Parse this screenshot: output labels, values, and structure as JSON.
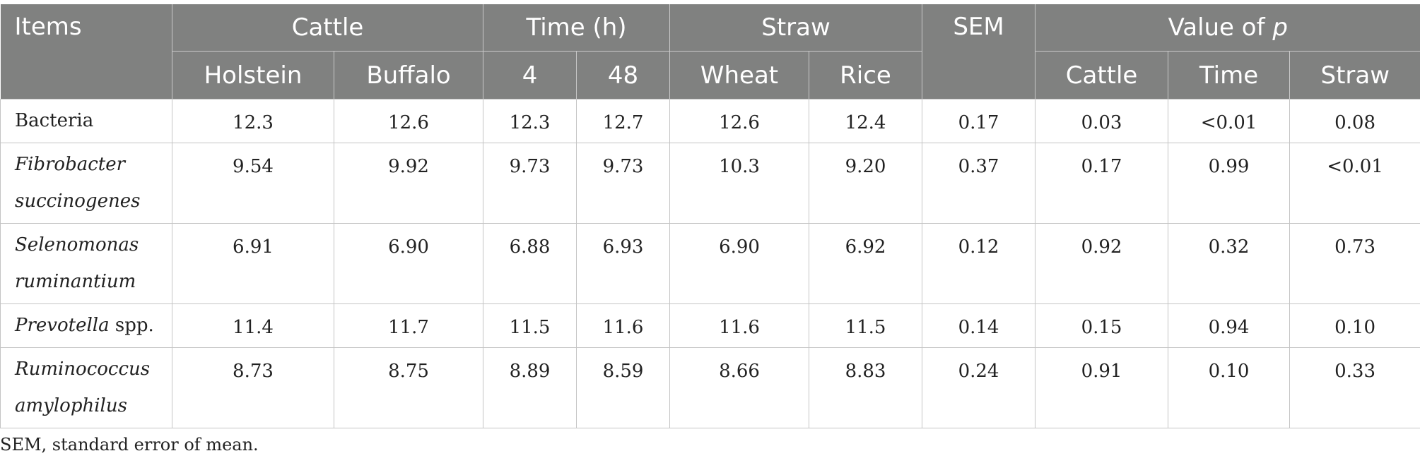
{
  "table": {
    "headers": {
      "items": "Items",
      "cattle": "Cattle",
      "time": "Time (h)",
      "straw": "Straw",
      "sem": "SEM",
      "value_of_p_prefix": "Value of ",
      "value_of_p_var": "p",
      "holstein": "Holstein",
      "buffalo": "Buffalo",
      "time_4": "4",
      "time_48": "48",
      "wheat": "Wheat",
      "rice": "Rice",
      "p_cattle": "Cattle",
      "p_time": "Time",
      "p_straw": "Straw"
    },
    "rows": [
      {
        "item_italic_1": "",
        "item_normal_1": "Bacteria",
        "item_italic_2": "",
        "item_normal_2": "",
        "values": [
          "12.3",
          "12.6",
          "12.3",
          "12.7",
          "12.6",
          "12.4",
          "0.17",
          "0.03",
          "<0.01",
          "0.08"
        ]
      },
      {
        "item_italic_1": "Fibrobacter",
        "item_normal_1": "",
        "item_italic_2": "succinogenes",
        "item_normal_2": "",
        "values": [
          "9.54",
          "9.92",
          "9.73",
          "9.73",
          "10.3",
          "9.20",
          "0.37",
          "0.17",
          "0.99",
          "<0.01"
        ]
      },
      {
        "item_italic_1": "Selenomonas",
        "item_normal_1": "",
        "item_italic_2": "ruminantium",
        "item_normal_2": "",
        "values": [
          "6.91",
          "6.90",
          "6.88",
          "6.93",
          "6.90",
          "6.92",
          "0.12",
          "0.92",
          "0.32",
          "0.73"
        ]
      },
      {
        "item_italic_1": "Prevotella",
        "item_normal_1": " spp.",
        "item_italic_2": "",
        "item_normal_2": "",
        "values": [
          "11.4",
          "11.7",
          "11.5",
          "11.6",
          "11.6",
          "11.5",
          "0.14",
          "0.15",
          "0.94",
          "0.10"
        ]
      },
      {
        "item_italic_1": "Ruminococcus",
        "item_normal_1": "",
        "item_italic_2": "amylophilus",
        "item_normal_2": "",
        "values": [
          "8.73",
          "8.75",
          "8.89",
          "8.59",
          "8.66",
          "8.83",
          "0.24",
          "0.91",
          "0.10",
          "0.33"
        ]
      }
    ]
  },
  "footnote": "SEM, standard error of mean.",
  "colors": {
    "header_bg": "#808180",
    "header_text": "#ffffff",
    "grid": "#c4c4c4"
  }
}
